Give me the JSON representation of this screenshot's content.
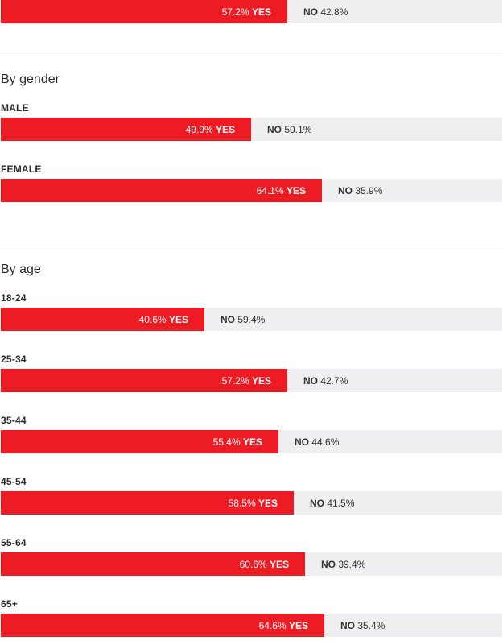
{
  "colors": {
    "yes": "#ed1c24",
    "no": "#efeff2",
    "divider": "#e6e6ea"
  },
  "top_bar": {
    "label": "",
    "yes": 57.2,
    "no": 42.8,
    "yes_text": "57.2%",
    "no_text": "42.8%"
  },
  "sections": [
    {
      "heading": "By gender",
      "rows": [
        {
          "label": "MALE",
          "yes": 49.9,
          "no": 50.1,
          "yes_text": "49.9%",
          "no_text": "50.1%"
        },
        {
          "label": "FEMALE",
          "yes": 64.1,
          "no": 35.9,
          "yes_text": "64.1%",
          "no_text": "35.9%"
        }
      ]
    },
    {
      "heading": "By age",
      "rows": [
        {
          "label": "18-24",
          "yes": 40.6,
          "no": 59.4,
          "yes_text": "40.6%",
          "no_text": "59.4%"
        },
        {
          "label": "25-34",
          "yes": 57.2,
          "no": 42.7,
          "yes_text": "57.2%",
          "no_text": "42.7%"
        },
        {
          "label": "35-44",
          "yes": 55.4,
          "no": 44.6,
          "yes_text": "55.4%",
          "no_text": "44.6%"
        },
        {
          "label": "45-54",
          "yes": 58.5,
          "no": 41.5,
          "yes_text": "58.5%",
          "no_text": "41.5%"
        },
        {
          "label": "55-64",
          "yes": 60.6,
          "no": 39.4,
          "yes_text": "60.6%",
          "no_text": "39.4%"
        },
        {
          "label": "65+",
          "yes": 64.6,
          "no": 35.4,
          "yes_text": "64.6%",
          "no_text": "35.4%"
        }
      ]
    }
  ],
  "words": {
    "yes": "YES",
    "no": "NO"
  },
  "chart_data": {
    "type": "bar",
    "series": [
      {
        "name": "YES",
        "values": [
          57.2,
          49.9,
          64.1,
          40.6,
          57.2,
          55.4,
          58.5,
          60.6,
          64.6
        ]
      },
      {
        "name": "NO",
        "values": [
          42.8,
          50.1,
          35.9,
          59.4,
          42.7,
          44.6,
          41.5,
          39.4,
          35.4
        ]
      }
    ],
    "categories": [
      "",
      "MALE",
      "FEMALE",
      "18-24",
      "25-34",
      "35-44",
      "45-54",
      "55-64",
      "65+"
    ],
    "stacked": true,
    "orientation": "horizontal",
    "xlim": [
      0,
      100
    ]
  }
}
